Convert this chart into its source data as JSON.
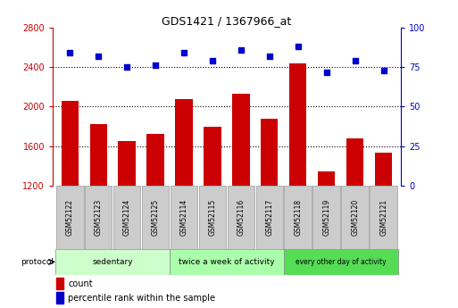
{
  "title": "GDS1421 / 1367966_at",
  "samples": [
    "GSM52122",
    "GSM52123",
    "GSM52124",
    "GSM52125",
    "GSM52114",
    "GSM52115",
    "GSM52116",
    "GSM52117",
    "GSM52118",
    "GSM52119",
    "GSM52120",
    "GSM52121"
  ],
  "count_values": [
    2060,
    1820,
    1650,
    1720,
    2080,
    1800,
    2130,
    1880,
    2440,
    1340,
    1680,
    1530
  ],
  "percentile_values": [
    84,
    82,
    75,
    76,
    84,
    79,
    86,
    82,
    88,
    72,
    79,
    73
  ],
  "ylim_left": [
    1200,
    2800
  ],
  "ylim_right": [
    0,
    100
  ],
  "yticks_left": [
    1200,
    1600,
    2000,
    2400,
    2800
  ],
  "yticks_right": [
    0,
    25,
    50,
    75,
    100
  ],
  "grid_values": [
    1600,
    2000,
    2400
  ],
  "bar_color": "#cc0000",
  "dot_color": "#0000cc",
  "bar_width": 0.6,
  "groups": [
    {
      "label": "sedentary",
      "start": 0,
      "end": 4,
      "color": "#ccffcc"
    },
    {
      "label": "twice a week of activity",
      "start": 4,
      "end": 8,
      "color": "#aaffaa"
    },
    {
      "label": "every other day of activity",
      "start": 8,
      "end": 12,
      "color": "#55dd55"
    }
  ],
  "protocol_label": "protocol",
  "legend_count_label": "count",
  "legend_percentile_label": "percentile rank within the sample",
  "tick_color_left": "#cc0000",
  "tick_color_right": "#0000cc",
  "background_color": "#ffffff",
  "plot_bg": "#ffffff",
  "xticklabel_bg": "#cccccc"
}
